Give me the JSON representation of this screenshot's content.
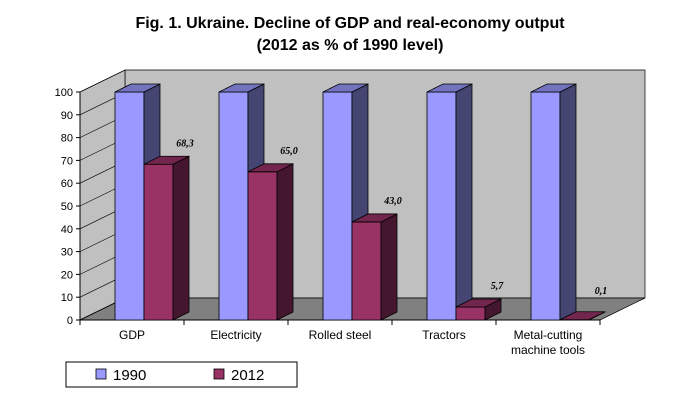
{
  "chart_data": {
    "type": "bar",
    "title": "Fig. 1. Ukraine. Decline of GDP and real-economy output",
    "subtitle": "(2012 as % of 1990 level)",
    "categories": [
      "GDP",
      "Electricity",
      "Rolled steel",
      "Tractors",
      "Metal-cutting\nmachine tools"
    ],
    "series": [
      {
        "name": "1990",
        "values": [
          100,
          100,
          100,
          100,
          100
        ],
        "color": "#9999ff"
      },
      {
        "name": "2012",
        "values": [
          68.3,
          65.0,
          43.0,
          5.7,
          0.1
        ],
        "color": "#993366"
      }
    ],
    "data_labels_2012": [
      "68,3",
      "65,0",
      "43,0",
      "5,7",
      "0,1"
    ],
    "ylim": [
      0,
      100
    ],
    "yticks": [
      0,
      10,
      20,
      30,
      40,
      50,
      60,
      70,
      80,
      90,
      100
    ],
    "grid": false,
    "legend": "bottom-left",
    "three_d": true,
    "xlabel": "",
    "ylabel": ""
  }
}
